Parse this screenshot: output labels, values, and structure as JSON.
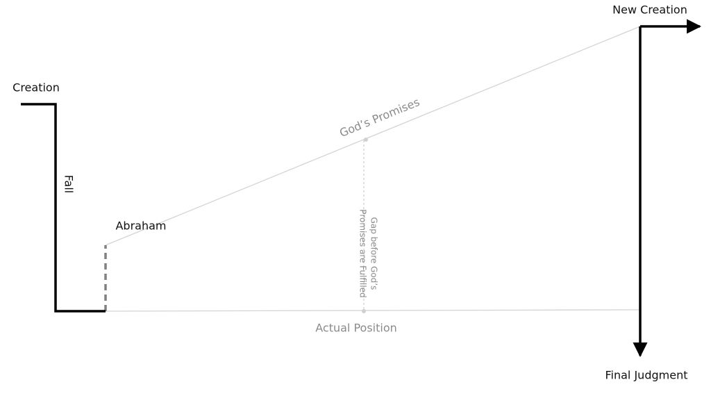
{
  "labels": {
    "creation": "Creation",
    "fall": "Fall",
    "abraham": "Abraham",
    "gods_promises": "God’s Promises",
    "gap": [
      "Gap before God’s",
      "Promises are Fulfilled"
    ],
    "actual_position": "Actual Position",
    "new_creation": "New Creation",
    "final_judgment": "Final Judgment"
  }
}
